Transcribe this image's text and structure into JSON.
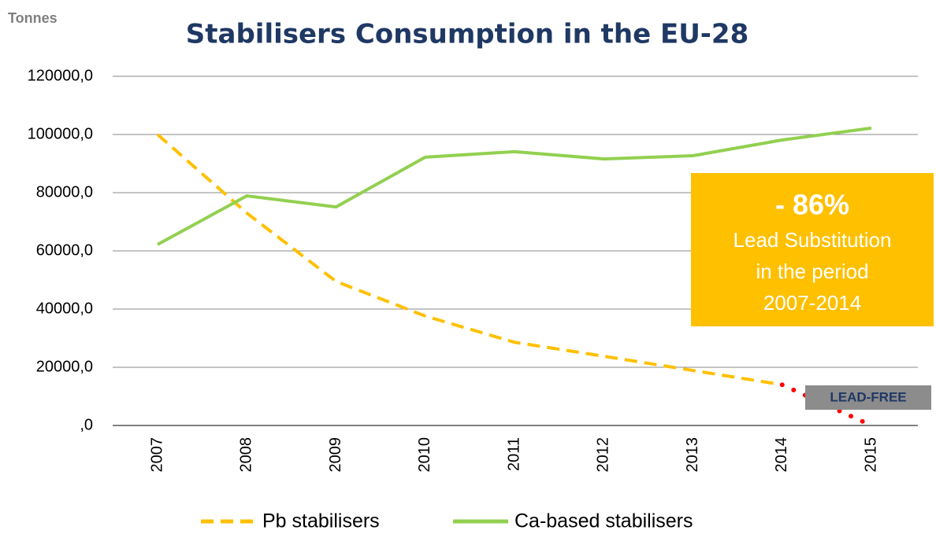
{
  "chart_data": {
    "type": "line",
    "title": "Stabilisers Consumption in the EU-28",
    "y_label": "Tonnes",
    "categories": [
      "2007",
      "2008",
      "2009",
      "2010",
      "2011",
      "2012",
      "2013",
      "2014",
      "2015"
    ],
    "series": [
      {
        "name": "Pb stabilisers",
        "color": "#FFC000",
        "dashed": true,
        "values": [
          100000,
          73000,
          49500,
          37600,
          28600,
          23800,
          18900,
          14000,
          null
        ]
      },
      {
        "name": "Ca-based stabilisers",
        "color": "#92D050",
        "dashed": false,
        "values": [
          62200,
          78900,
          75100,
          92200,
          94100,
          91600,
          92700,
          98100,
          102200
        ]
      }
    ],
    "projection": {
      "label": "LEAD-FREE",
      "color": "#FF0000",
      "x": [
        "2014",
        "2015"
      ],
      "values": [
        14000,
        0
      ]
    },
    "callout": {
      "headline": "- 86%",
      "lines": [
        "Lead Substitution",
        "in the period",
        "2007-2014"
      ]
    },
    "ylim": [
      0,
      120000
    ],
    "yticks": [
      {
        "value": 0,
        "label": ",0"
      },
      {
        "value": 20000,
        "label": "20000,0"
      },
      {
        "value": 40000,
        "label": "40000,0"
      },
      {
        "value": 60000,
        "label": "60000,0"
      },
      {
        "value": 80000,
        "label": "80000,0"
      },
      {
        "value": 100000,
        "label": "100000,0"
      },
      {
        "value": 120000,
        "label": "120000,0"
      }
    ],
    "grid": true,
    "legend": "bottom"
  }
}
